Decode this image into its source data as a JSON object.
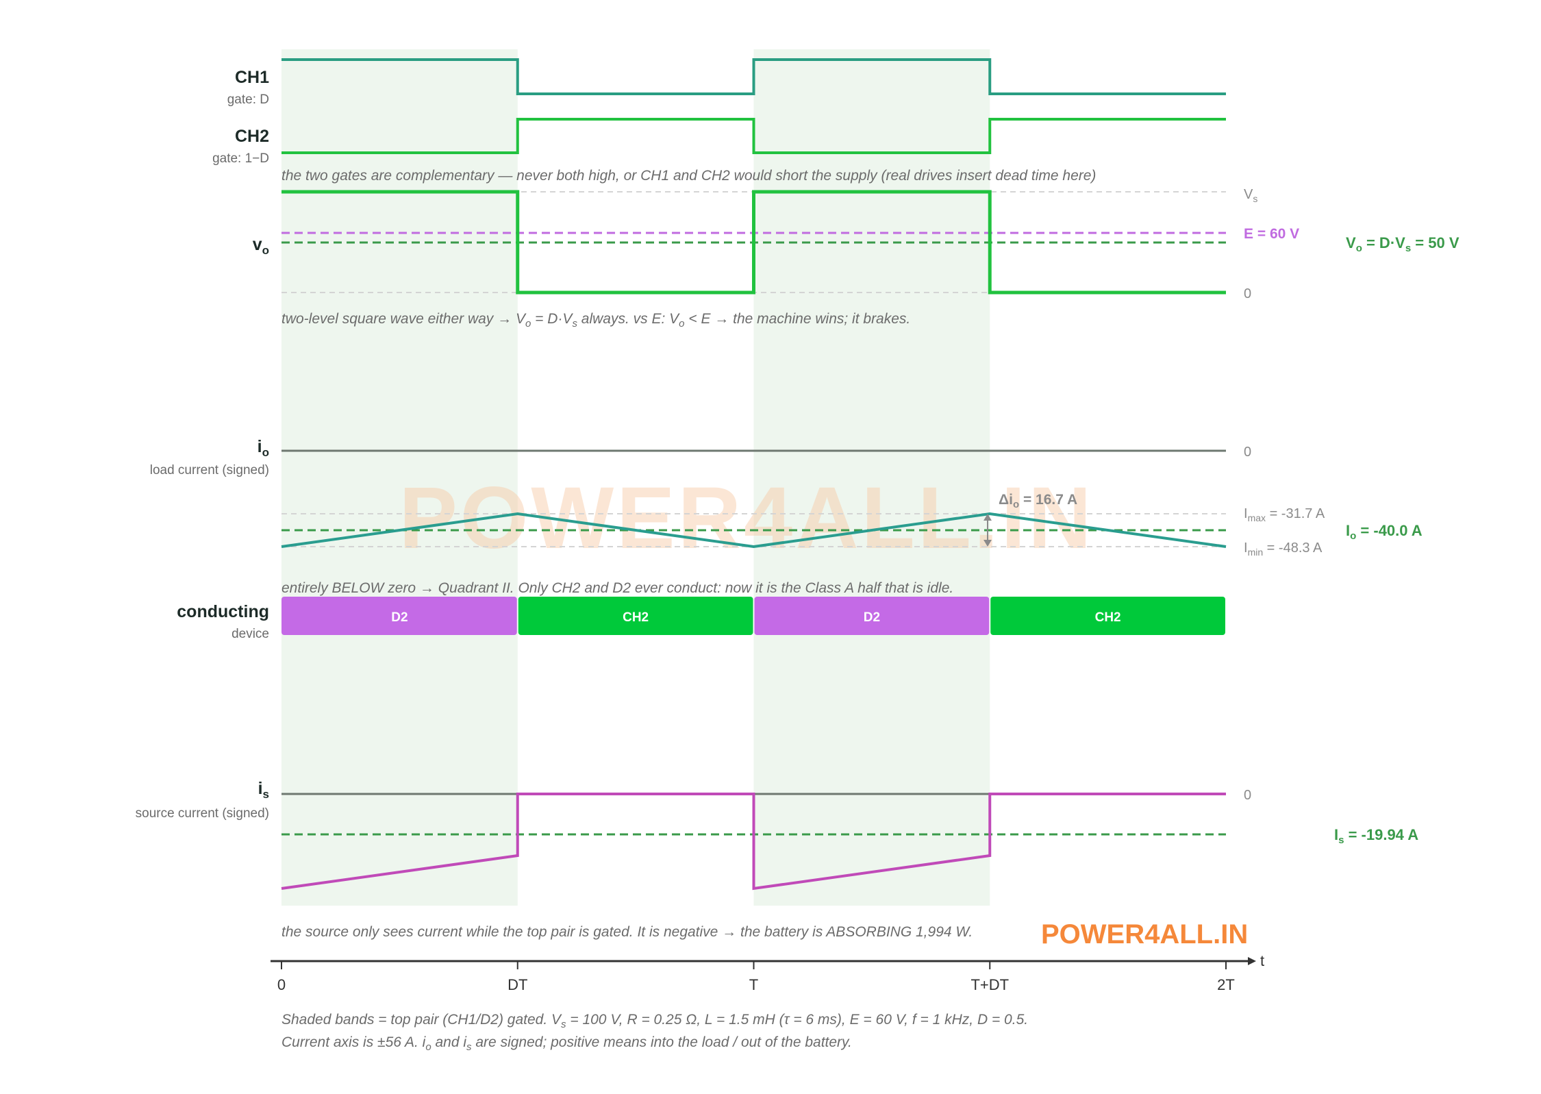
{
  "watermark": "POWER4ALL.IN",
  "channels": {
    "ch1_label": "CH1",
    "ch1_sub": "gate: D",
    "ch2_label": "CH2",
    "ch2_sub": "gate: 1−D"
  },
  "notes": {
    "gates": "the two gates are complementary — never both high, or CH1 and CH2 would short the supply (real drives insert dead time here)",
    "vo_prefix": "two-level square wave either way → ",
    "vo_mid": " always. vs E: ",
    "vo_suffix": " → the machine wins; it brakes.",
    "vo_eq1_a": "V",
    "vo_eq1_sub": "o",
    "vo_eq1_b": " = D·V",
    "vo_eq1_sub2": "s",
    "vo_eq2_a": "V",
    "vo_eq2_sub": "o",
    "vo_eq2_b": " < E",
    "io": "entirely BELOW zero → Quadrant II. Only CH2 and D2 ever conduct: now it is the Class A half that is idle.",
    "is": "the source only sees current while the top pair is gated. It is negative → the battery is ABSORBING 1,994 W.",
    "footer1_a": "Shaded bands = top pair (CH1/D2) gated. V",
    "footer1_sub": "s",
    "footer1_b": " = 100 V, R = 0.25 Ω, L = 1.5 mH (τ = 6 ms), E = 60 V, f = 1 kHz, D = 0.5.",
    "footer2_a": "Current axis is ±56 A. i",
    "footer2_sub1": "o",
    "footer2_b": " and i",
    "footer2_sub2": "s",
    "footer2_c": " are signed; positive means into the load / out of the battery."
  },
  "vo_panel": {
    "label_main": "v",
    "label_sub": "o",
    "vs_label_main": "V",
    "vs_label_sub": "s",
    "zero_label": "0",
    "e_label": "E = 60 V",
    "avg_label_a": "V",
    "avg_label_sub1": "o",
    "avg_label_b": " = D·V",
    "avg_label_sub2": "s",
    "avg_label_c": " = 50 V"
  },
  "io_panel": {
    "label_main": "i",
    "label_sub": "o",
    "label_desc": "load current (signed)",
    "zero_label": "0",
    "imax_main": "I",
    "imax_sub": "max",
    "imax_val": " = -31.7 A",
    "imin_main": "I",
    "imin_sub": "min",
    "imin_val": " = -48.3 A",
    "avg_main": "I",
    "avg_sub": "o",
    "avg_val": " = -40.0 A",
    "ripple_main": "Δi",
    "ripple_sub": "o",
    "ripple_val": " = 16.7 A"
  },
  "device_panel": {
    "label_main": "conducting",
    "label_sub": "device",
    "segments": [
      "D2",
      "CH2",
      "D2",
      "CH2"
    ]
  },
  "is_panel": {
    "label_main": "i",
    "label_sub": "s",
    "label_desc": "source current (signed)",
    "zero_label": "0",
    "avg_main": "I",
    "avg_sub": "s",
    "avg_val": " = -19.94 A"
  },
  "time_axis": {
    "ticks": [
      "0",
      "DT",
      "T",
      "T+DT",
      "2T"
    ],
    "axis_label": "t"
  },
  "colors": {
    "ch1": "#2a9d82",
    "ch2": "#21c23f",
    "vo": "#21c23f",
    "io": "#2a9d8f",
    "is": "#c04ab8",
    "avg": "#3a9a4a",
    "e_line": "#c06be0",
    "d2_box": "#c46ae6",
    "ch2_box": "#00c93a",
    "band": "#eef6ee",
    "zero_line": "#6e7870"
  },
  "chart_data": {
    "type": "line",
    "x": [
      "0",
      "DT",
      "T",
      "T+DT",
      "2T"
    ],
    "series": [
      {
        "name": "CH1",
        "values": [
          1,
          0,
          1,
          0,
          0
        ]
      },
      {
        "name": "CH2",
        "values": [
          0,
          1,
          0,
          1,
          1
        ]
      },
      {
        "name": "vo",
        "values": [
          100,
          0,
          100,
          0,
          0
        ],
        "unit": "V"
      },
      {
        "name": "io",
        "values": [
          -48.3,
          -31.7,
          -48.3,
          -31.7,
          -48.3
        ],
        "unit": "A"
      },
      {
        "name": "is",
        "values": [
          -48.3,
          0,
          -48.3,
          0,
          0
        ],
        "unit": "A",
        "during_on": [
          -48.3,
          -31.7
        ]
      }
    ],
    "reference_lines": {
      "Vs": 100,
      "E": 60,
      "Vo_avg": 50,
      "Imax": -31.7,
      "Imin": -48.3,
      "Io_avg": -40.0,
      "Is_avg": -19.94
    },
    "parameters": {
      "Vs": 100,
      "R": 0.25,
      "L_mH": 1.5,
      "tau_ms": 6,
      "E": 60,
      "f_kHz": 1,
      "D": 0.5
    },
    "current_axis": [
      -56,
      56
    ]
  }
}
